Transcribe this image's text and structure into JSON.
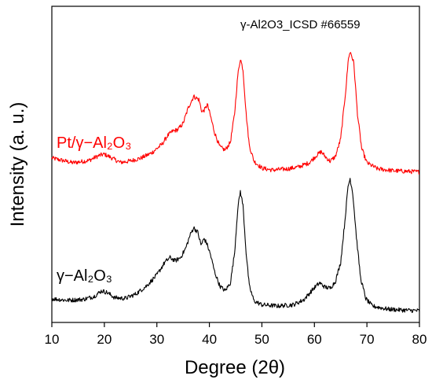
{
  "chart_data": {
    "type": "line",
    "title": "",
    "xlabel": "Degree (2θ)",
    "ylabel": "Intensity (a. u.)",
    "xlim": [
      10,
      80
    ],
    "ylim": [
      0,
      100
    ],
    "xticks": [
      10,
      20,
      30,
      40,
      50,
      60,
      70,
      80
    ],
    "yticks_shown": false,
    "grid": false,
    "legend": "none",
    "annotation": "γ-Al2O3_ICSD  #66559",
    "series": [
      {
        "name": "Pt/γ−Al₂O₃",
        "color": "#ff0000",
        "points": [
          [
            10,
            52
          ],
          [
            14,
            50.5
          ],
          [
            17,
            51.2
          ],
          [
            19,
            52.8
          ],
          [
            20,
            53.2
          ],
          [
            21,
            52.4
          ],
          [
            23,
            50.6
          ],
          [
            25,
            51.1
          ],
          [
            27,
            52
          ],
          [
            29,
            53.6
          ],
          [
            31,
            56.4
          ],
          [
            32,
            59
          ],
          [
            33,
            60.5
          ],
          [
            34,
            61
          ],
          [
            35,
            63
          ],
          [
            36,
            68
          ],
          [
            37,
            71.5
          ],
          [
            38,
            70.5
          ],
          [
            38.6,
            66.5
          ],
          [
            39.2,
            67.5
          ],
          [
            39.6,
            69
          ],
          [
            40.1,
            66
          ],
          [
            41,
            60
          ],
          [
            42,
            55.5
          ],
          [
            43,
            54.5
          ],
          [
            44,
            57
          ],
          [
            44.8,
            66
          ],
          [
            45.4,
            78
          ],
          [
            45.9,
            83.5
          ],
          [
            46.4,
            80
          ],
          [
            47,
            66
          ],
          [
            47.6,
            56
          ],
          [
            48.5,
            51
          ],
          [
            50,
            48.8
          ],
          [
            52,
            48.2
          ],
          [
            55,
            48.6
          ],
          [
            57,
            49.2
          ],
          [
            59,
            50.5
          ],
          [
            60.5,
            53
          ],
          [
            61.3,
            54
          ],
          [
            62.2,
            52.2
          ],
          [
            63,
            51
          ],
          [
            64,
            52.5
          ],
          [
            65,
            58
          ],
          [
            66,
            74
          ],
          [
            66.5,
            84
          ],
          [
            66.9,
            85.5
          ],
          [
            67.5,
            82
          ],
          [
            68.2,
            66
          ],
          [
            69,
            55
          ],
          [
            70,
            50.5
          ],
          [
            72,
            48.6
          ],
          [
            75,
            48
          ],
          [
            80,
            47.6
          ]
        ]
      },
      {
        "name": "γ−Al₂O₃",
        "color": "#000000",
        "points": [
          [
            10,
            7.5
          ],
          [
            13,
            7
          ],
          [
            16,
            7.3
          ],
          [
            18,
            8.2
          ],
          [
            19.5,
            10
          ],
          [
            20.5,
            9.5
          ],
          [
            22,
            7.8
          ],
          [
            24,
            7.6
          ],
          [
            26,
            9
          ],
          [
            28,
            11.5
          ],
          [
            30,
            15
          ],
          [
            31.5,
            19
          ],
          [
            32.5,
            20.5
          ],
          [
            33.5,
            19.5
          ],
          [
            34.5,
            20.5
          ],
          [
            35.5,
            23.5
          ],
          [
            36.3,
            27.5
          ],
          [
            37,
            30
          ],
          [
            37.8,
            28.5
          ],
          [
            38.4,
            24.5
          ],
          [
            39,
            26.5
          ],
          [
            39.5,
            25
          ],
          [
            40.2,
            21.5
          ],
          [
            41,
            16
          ],
          [
            42,
            11.5
          ],
          [
            43,
            10
          ],
          [
            44,
            12.5
          ],
          [
            44.8,
            22
          ],
          [
            45.4,
            36
          ],
          [
            45.9,
            41.5
          ],
          [
            46.4,
            37
          ],
          [
            47,
            22
          ],
          [
            47.6,
            11.5
          ],
          [
            48.5,
            6.8
          ],
          [
            50,
            5.6
          ],
          [
            53,
            5.2
          ],
          [
            56,
            5.6
          ],
          [
            58,
            7.2
          ],
          [
            60,
            11
          ],
          [
            61,
            12.5
          ],
          [
            62,
            11.2
          ],
          [
            63,
            10.8
          ],
          [
            64,
            13
          ],
          [
            65,
            19
          ],
          [
            65.8,
            32
          ],
          [
            66.4,
            43
          ],
          [
            66.8,
            45.5
          ],
          [
            67.3,
            41
          ],
          [
            68,
            27
          ],
          [
            68.8,
            14
          ],
          [
            69.8,
            7.5
          ],
          [
            71,
            5.2
          ],
          [
            74,
            4.2
          ],
          [
            77,
            3.9
          ],
          [
            80,
            3.7
          ]
        ]
      }
    ]
  }
}
